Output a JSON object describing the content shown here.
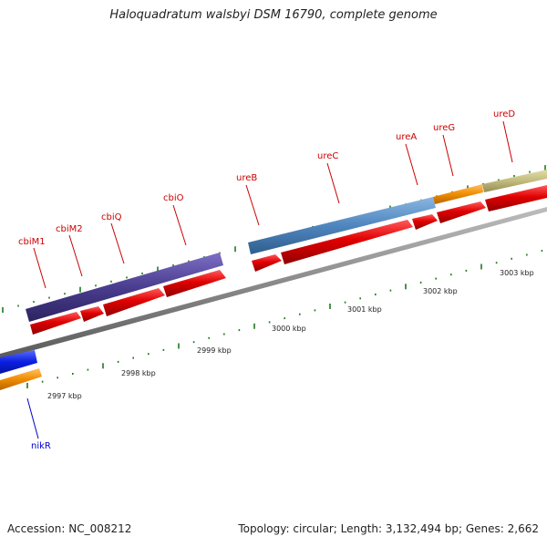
{
  "title": "Haloquadratum walsbyi DSM 16790, complete genome",
  "footer": {
    "accession": "Accession: NC_008212",
    "summary": "Topology: circular; Length: 3,132,494 bp; Genes: 2,662"
  },
  "colors": {
    "cds": "#e00000",
    "backbone": "#8a8a8a",
    "tick": "#1f7a1f",
    "label_forward": "#cc0000",
    "label_reverse": "#0000cc",
    "operon_cbi": "#4a3d8f",
    "operon_ure": "#4f86bf",
    "operon_ureG": "#f08c00",
    "operon_ureD": "#c2bb7c",
    "nikR_blue": "#0a1ee0",
    "nikR_orange": "#f08c00"
  },
  "genes": [
    {
      "name": "cbiM1",
      "strand": "forward"
    },
    {
      "name": "cbiM2",
      "strand": "forward"
    },
    {
      "name": "cbiQ",
      "strand": "forward"
    },
    {
      "name": "cbiO",
      "strand": "forward"
    },
    {
      "name": "ureB",
      "strand": "forward"
    },
    {
      "name": "ureC",
      "strand": "forward"
    },
    {
      "name": "ureA",
      "strand": "forward"
    },
    {
      "name": "ureG",
      "strand": "forward"
    },
    {
      "name": "ureD",
      "strand": "forward"
    },
    {
      "name": "nikR",
      "strand": "reverse"
    }
  ],
  "scale_labels": [
    "2997 kbp",
    "2998 kbp",
    "2999 kbp",
    "3000 kbp",
    "3001 kbp",
    "3002 kbp",
    "3003 kbp"
  ]
}
